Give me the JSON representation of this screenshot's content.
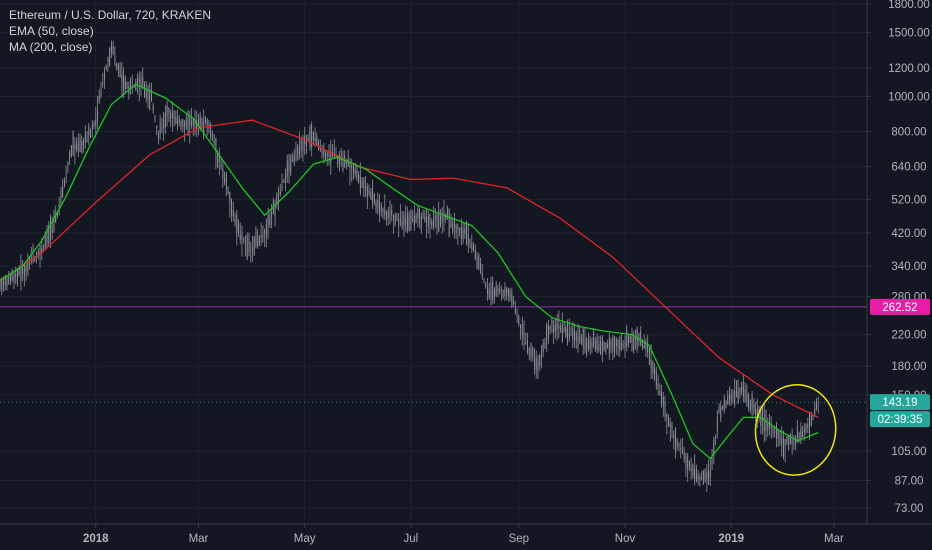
{
  "chart_data": {
    "type": "line",
    "title": "Ethereum / U.S. Dollar, 720, KRAKEN",
    "scale": "log",
    "grid": true,
    "indicators": [
      {
        "name": "EMA (50, close)",
        "color": "#22c322"
      },
      {
        "name": "MA (200, close)",
        "color": "#e0232b"
      }
    ],
    "x_ticks": [
      "2018",
      "Mar",
      "May",
      "Jul",
      "Sep",
      "Nov",
      "2019",
      "Mar"
    ],
    "x_tick_dates": [
      "2018-01-01",
      "2018-03-01",
      "2018-05-01",
      "2018-07-01",
      "2018-09-01",
      "2018-11-01",
      "2019-01-01",
      "2019-03-01"
    ],
    "y_ticks": [
      "1800.00",
      "1500.00",
      "1200.00",
      "1000.00",
      "800.00",
      "640.00",
      "520.00",
      "420.00",
      "340.00",
      "280.00",
      "220.00",
      "180.00",
      "150.00",
      "105.00",
      "87.00",
      "73.00"
    ],
    "x_range": [
      "2017-11-07",
      "2019-03-20"
    ],
    "y_range": [
      66,
      1800
    ],
    "price_series": {
      "name": "Ethereum / U.S. Dollar",
      "color": "#9598a1",
      "dates": [
        "2017-11-07",
        "2017-11-20",
        "2017-12-01",
        "2017-12-10",
        "2017-12-18",
        "2017-12-25",
        "2018-01-01",
        "2018-01-06",
        "2018-01-10",
        "2018-01-15",
        "2018-01-20",
        "2018-01-27",
        "2018-02-02",
        "2018-02-06",
        "2018-02-12",
        "2018-02-20",
        "2018-02-28",
        "2018-03-06",
        "2018-03-12",
        "2018-03-18",
        "2018-03-24",
        "2018-04-01",
        "2018-04-08",
        "2018-04-15",
        "2018-04-22",
        "2018-04-28",
        "2018-05-05",
        "2018-05-12",
        "2018-05-20",
        "2018-05-28",
        "2018-06-05",
        "2018-06-12",
        "2018-06-20",
        "2018-06-28",
        "2018-07-05",
        "2018-07-12",
        "2018-07-20",
        "2018-07-26",
        "2018-08-02",
        "2018-08-10",
        "2018-08-14",
        "2018-08-20",
        "2018-08-28",
        "2018-09-05",
        "2018-09-12",
        "2018-09-20",
        "2018-09-28",
        "2018-10-08",
        "2018-10-20",
        "2018-10-30",
        "2018-11-08",
        "2018-11-14",
        "2018-11-20",
        "2018-11-25",
        "2018-12-01",
        "2018-12-07",
        "2018-12-14",
        "2018-12-20",
        "2018-12-25",
        "2019-01-01",
        "2019-01-08",
        "2019-01-11",
        "2019-01-18",
        "2019-01-25",
        "2019-02-01",
        "2019-02-07",
        "2019-02-12",
        "2019-02-17",
        "2019-02-20"
      ],
      "values": [
        300,
        330,
        380,
        470,
        720,
        740,
        850,
        1150,
        1370,
        1150,
        1050,
        1100,
        980,
        780,
        900,
        840,
        850,
        850,
        700,
        540,
        420,
        380,
        420,
        510,
        640,
        720,
        780,
        700,
        680,
        640,
        560,
        500,
        470,
        445,
        470,
        450,
        470,
        440,
        420,
        340,
        290,
        295,
        280,
        210,
        180,
        235,
        225,
        210,
        205,
        205,
        215,
        200,
        160,
        130,
        110,
        98,
        88,
        90,
        135,
        150,
        155,
        145,
        130,
        120,
        110,
        112,
        120,
        130,
        143
      ]
    },
    "ema_series": {
      "name": "EMA (50, close)",
      "dates": [
        "2017-11-07",
        "2017-11-20",
        "2017-12-01",
        "2017-12-15",
        "2017-12-28",
        "2018-01-10",
        "2018-01-24",
        "2018-02-10",
        "2018-02-26",
        "2018-03-12",
        "2018-03-26",
        "2018-04-08",
        "2018-04-22",
        "2018-05-06",
        "2018-05-20",
        "2018-06-05",
        "2018-06-20",
        "2018-07-05",
        "2018-07-20",
        "2018-08-05",
        "2018-08-20",
        "2018-09-05",
        "2018-09-20",
        "2018-10-05",
        "2018-10-20",
        "2018-11-05",
        "2018-11-15",
        "2018-11-28",
        "2018-12-10",
        "2018-12-20",
        "2018-12-28",
        "2019-01-08",
        "2019-01-18",
        "2019-01-28",
        "2019-02-08",
        "2019-02-20"
      ],
      "values": [
        310,
        340,
        400,
        530,
        720,
        950,
        1080,
        990,
        870,
        700,
        560,
        470,
        545,
        650,
        680,
        630,
        560,
        500,
        470,
        440,
        370,
        280,
        245,
        232,
        225,
        220,
        205,
        150,
        110,
        100,
        112,
        130,
        130,
        120,
        112,
        118
      ]
    },
    "ma_series": {
      "name": "MA (200, close)",
      "dates": [
        "2017-11-07",
        "2017-12-01",
        "2018-01-01",
        "2018-02-01",
        "2018-03-01",
        "2018-04-01",
        "2018-05-01",
        "2018-06-01",
        "2018-07-01",
        "2018-07-25",
        "2018-08-25",
        "2018-09-25",
        "2018-10-25",
        "2018-11-25",
        "2018-12-25",
        "2019-01-25",
        "2019-02-20"
      ],
      "values": [
        310,
        370,
        510,
        690,
        820,
        860,
        760,
        640,
        590,
        595,
        560,
        460,
        360,
        260,
        190,
        150,
        130
      ]
    },
    "price_labels": [
      {
        "value": 262.52,
        "text": "262.52",
        "color": "#e91ea5"
      },
      {
        "value": 143.19,
        "text": "143.19",
        "color": "#26a69a"
      },
      {
        "text": "02:39:35",
        "color": "#26a69a"
      }
    ],
    "horizontal_lines": [
      {
        "value": 262.52,
        "color": "#9c27b0"
      }
    ],
    "annotations": [
      {
        "type": "ellipse",
        "color": "#f0e21b",
        "center_date": "2019-02-07",
        "center_value": 120,
        "date_half_width_days": 23,
        "value_top": 160,
        "value_bottom": 90
      }
    ]
  }
}
